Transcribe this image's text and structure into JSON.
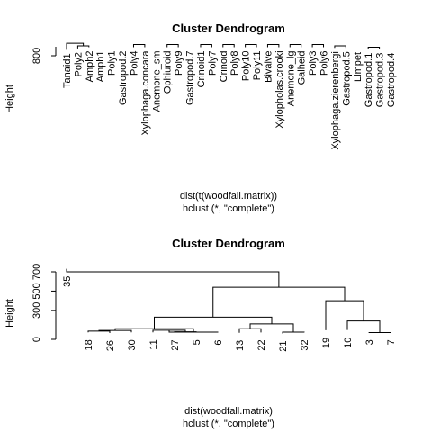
{
  "chart_data": [
    {
      "type": "dendrogram",
      "title": "Cluster Dendrogram",
      "ylabel": "Height",
      "xlabel": "dist(t(woodfall.matrix))",
      "sub": "hclust (*, \"complete\")",
      "yticks": [
        800
      ],
      "ylim": [
        780,
        860
      ],
      "leaves": [
        "Tanaid1",
        "Poly2",
        "Amph2",
        "Amph1",
        "Poly1",
        "Gastropod.2",
        "Poly4",
        "Xylophaga.concara",
        "Anemone_sm",
        "Ophiuroid",
        "Poly9",
        "Gastropod.7",
        "Crinoid1",
        "Poly7",
        "Crinoid",
        "Poly8",
        "Poly10",
        "Poly11",
        "Bivalve",
        "Xylopholas.crooki",
        "Anemone_lg",
        "Galheid",
        "Poly3",
        "Poly6",
        "Xylophaga.zierenbergi",
        "Gastropod.5",
        "Limpet",
        "Gastropod.1",
        "Gastropod.3",
        "Gastropod.4"
      ]
    },
    {
      "type": "dendrogram",
      "title": "Cluster Dendrogram",
      "ylabel": "Height",
      "xlabel": "dist(woodfall.matrix)",
      "sub": "hclust (*, \"complete\")",
      "yticks": [
        0,
        300,
        500,
        700
      ],
      "ylim": [
        0,
        700
      ],
      "leaves": [
        "35",
        "18",
        "26",
        "30",
        "11",
        "27",
        "5",
        "6",
        "13",
        "22",
        "21",
        "32",
        "19",
        "10",
        "3",
        "7"
      ]
    }
  ]
}
